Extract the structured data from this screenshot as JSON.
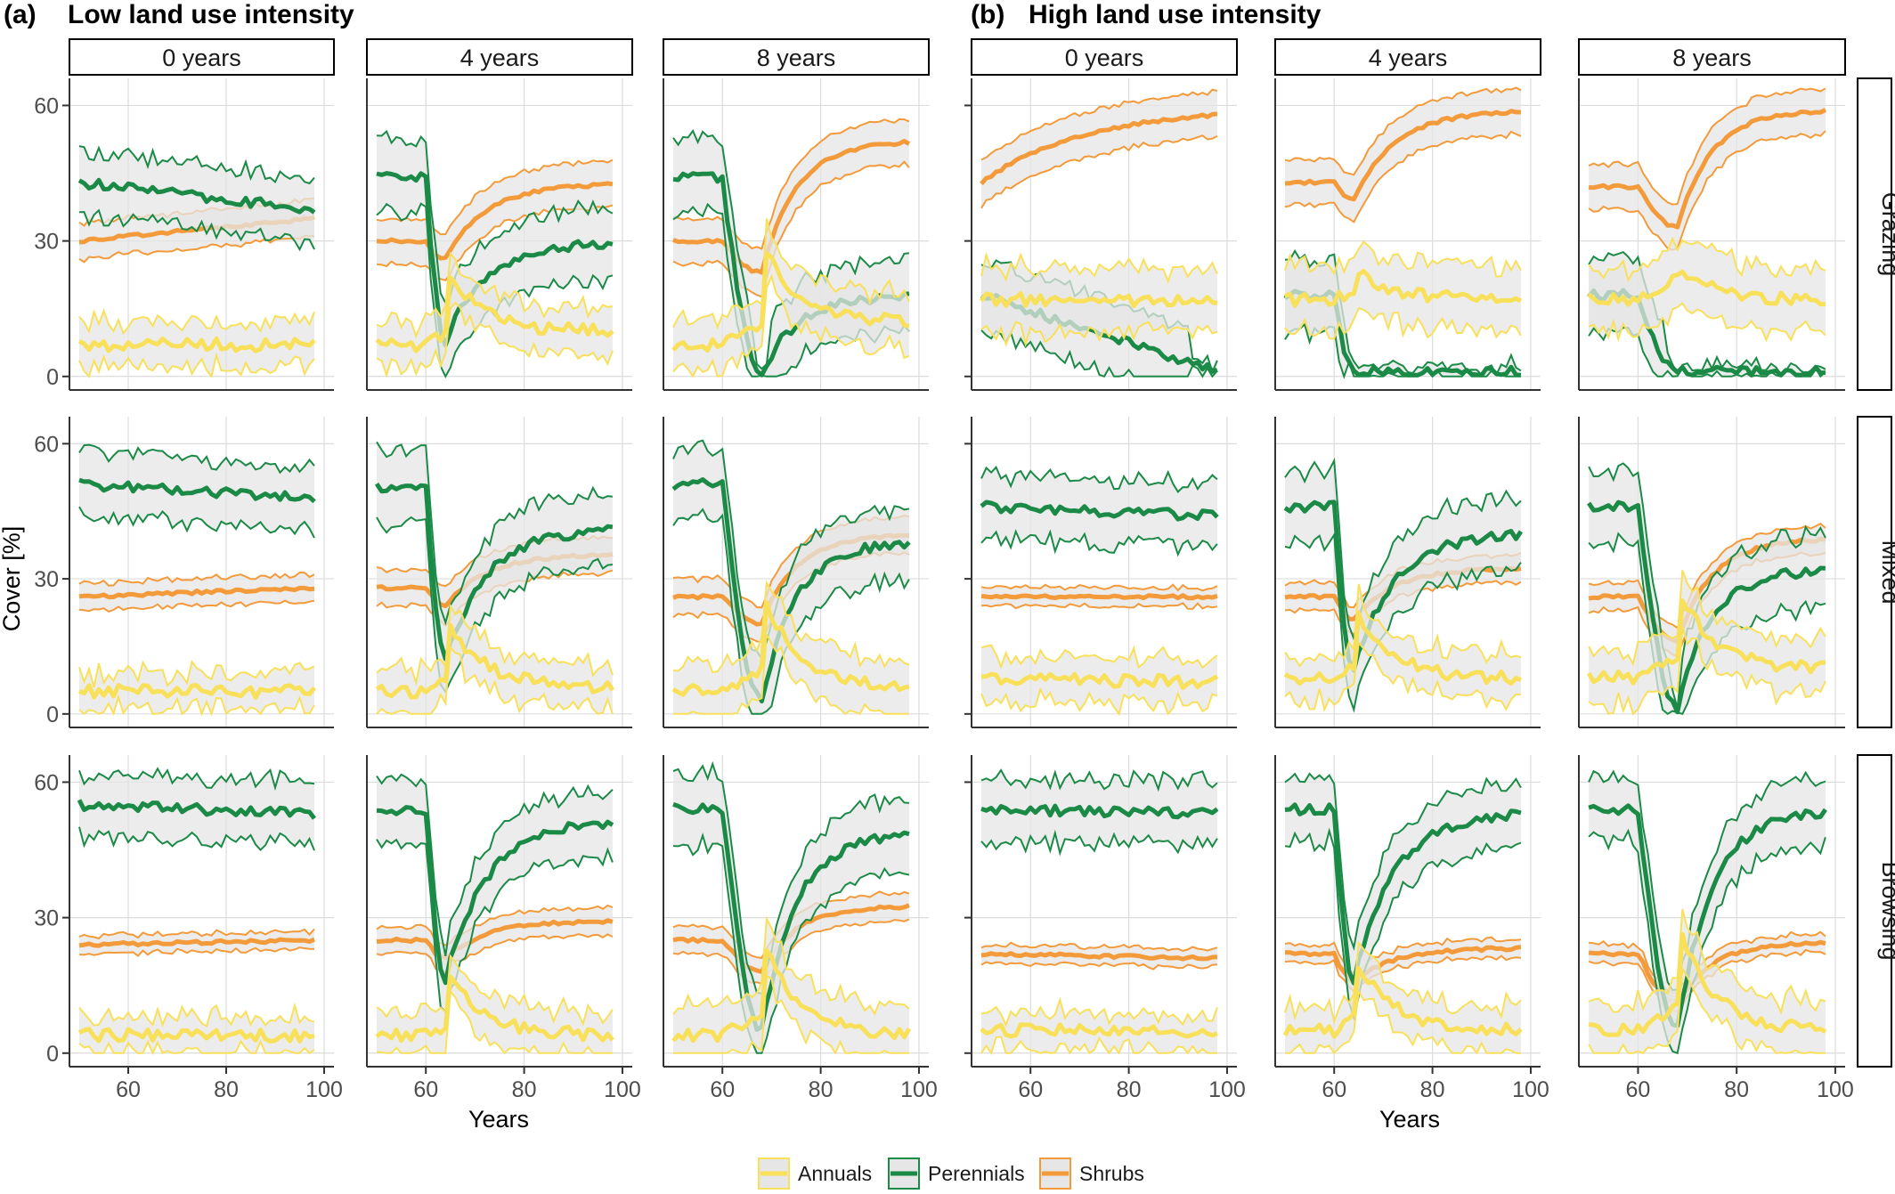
{
  "chart_data": {
    "type": "line",
    "panel_titles": [
      {
        "label": "(a)",
        "title": "Low land use intensity"
      },
      {
        "label": "(b)",
        "title": "High land use intensity"
      }
    ],
    "column_strips": [
      "0 years",
      "4 years",
      "8 years"
    ],
    "row_strips": [
      "Grazing",
      "Mixed",
      "Browsing"
    ],
    "xlabel": "Years",
    "ylabel": "Cover [%]",
    "xlim": [
      48,
      102
    ],
    "ylim": [
      -3,
      66
    ],
    "xticks": [
      60,
      80,
      100
    ],
    "yticks": [
      0,
      30,
      60
    ],
    "xtick_labels": [
      "60",
      "80",
      "100"
    ],
    "ytick_labels": [
      "0",
      "30",
      "60"
    ],
    "colors": {
      "Annuals": "#f9e05a",
      "Perennials": "#1a8a46",
      "Shrubs": "#f39a3a",
      "ribbon": "#e6e6e6",
      "grid": "#dcdcdc",
      "frame": "#333333"
    },
    "legend": [
      "Annuals",
      "Perennials",
      "Shrubs"
    ],
    "x_start": 50,
    "x_end": 98,
    "disturbance_year": 60,
    "description": "Each facet shows mean cover (thick line) with a grey ribbon bounded by thin lines. Values per series: start/pre-disturbance mean, minimum during disturbance, end mean, and ribbon half-widths.",
    "facets": [
      {
        "intensity": "Low",
        "row": "Grazing",
        "duration": 0,
        "Annuals": {
          "start": 7,
          "end": 7,
          "min": 7,
          "spread": 5
        },
        "Perennials": {
          "start": 43,
          "end": 37,
          "min": 37,
          "spread": 7
        },
        "Shrubs": {
          "start": 30,
          "end": 35,
          "min": 30,
          "spread": 4
        }
      },
      {
        "intensity": "Low",
        "row": "Grazing",
        "duration": 4,
        "Annuals": {
          "start": 7,
          "peak": 24,
          "end": 10,
          "spread": 5
        },
        "Perennials": {
          "start": 44,
          "min": 8,
          "end": 29,
          "spread": 8
        },
        "Shrubs": {
          "start": 30,
          "min": 26,
          "end": 42,
          "spread": 5
        }
      },
      {
        "intensity": "Low",
        "row": "Grazing",
        "duration": 8,
        "Annuals": {
          "start": 7,
          "peak": 30,
          "end": 12,
          "spread": 6
        },
        "Perennials": {
          "start": 44,
          "min": 0.5,
          "end": 17,
          "spread": 8
        },
        "Shrubs": {
          "start": 30,
          "min": 23,
          "end": 51,
          "spread": 5
        }
      },
      {
        "intensity": "High",
        "row": "Grazing",
        "duration": 0,
        "Annuals": {
          "start": 17,
          "end": 17,
          "min": 17,
          "spread": 7
        },
        "Perennials": {
          "start": 18,
          "min": 1,
          "end": 1,
          "spread": 8
        },
        "Shrubs": {
          "start": 43,
          "end": 58,
          "min": 43,
          "spread": 5
        }
      },
      {
        "intensity": "High",
        "row": "Grazing",
        "duration": 4,
        "Annuals": {
          "start": 17,
          "peak": 24,
          "end": 17,
          "spread": 7
        },
        "Perennials": {
          "start": 18,
          "min": 1,
          "end": 1,
          "spread": 8
        },
        "Shrubs": {
          "start": 43,
          "min": 39,
          "end": 58,
          "spread": 5
        }
      },
      {
        "intensity": "High",
        "row": "Grazing",
        "duration": 8,
        "Annuals": {
          "start": 17,
          "peak": 24,
          "end": 17,
          "spread": 7
        },
        "Perennials": {
          "start": 18,
          "min": 1,
          "end": 1,
          "spread": 8
        },
        "Shrubs": {
          "start": 42,
          "min": 33,
          "end": 58,
          "spread": 5
        }
      },
      {
        "intensity": "Low",
        "row": "Mixed",
        "duration": 0,
        "Annuals": {
          "start": 5,
          "end": 5,
          "min": 5,
          "spread": 4
        },
        "Perennials": {
          "start": 51,
          "end": 48,
          "min": 48,
          "spread": 7
        },
        "Shrubs": {
          "start": 26,
          "end": 28,
          "min": 26,
          "spread": 3
        }
      },
      {
        "intensity": "Low",
        "row": "Mixed",
        "duration": 4,
        "Annuals": {
          "start": 5,
          "peak": 22,
          "end": 6,
          "spread": 5
        },
        "Perennials": {
          "start": 50,
          "min": 12,
          "end": 40,
          "spread": 8
        },
        "Shrubs": {
          "start": 28,
          "min": 24,
          "end": 35,
          "spread": 4
        }
      },
      {
        "intensity": "Low",
        "row": "Mixed",
        "duration": 8,
        "Annuals": {
          "start": 5,
          "peak": 27,
          "end": 6,
          "spread": 6
        },
        "Perennials": {
          "start": 51,
          "min": 3,
          "end": 37,
          "spread": 8
        },
        "Shrubs": {
          "start": 26,
          "min": 20,
          "end": 39,
          "spread": 4
        }
      },
      {
        "intensity": "High",
        "row": "Mixed",
        "duration": 0,
        "Annuals": {
          "start": 8,
          "end": 7,
          "min": 7,
          "spread": 5
        },
        "Perennials": {
          "start": 46,
          "end": 44,
          "min": 44,
          "spread": 7
        },
        "Shrubs": {
          "start": 26,
          "end": 26,
          "min": 26,
          "spread": 2
        }
      },
      {
        "intensity": "High",
        "row": "Mixed",
        "duration": 4,
        "Annuals": {
          "start": 8,
          "peak": 24,
          "end": 8,
          "spread": 5
        },
        "Perennials": {
          "start": 46,
          "min": 10,
          "end": 39,
          "spread": 8
        },
        "Shrubs": {
          "start": 26,
          "min": 21,
          "end": 32,
          "spread": 3
        }
      },
      {
        "intensity": "High",
        "row": "Mixed",
        "duration": 8,
        "Annuals": {
          "start": 8,
          "peak": 28,
          "end": 10,
          "spread": 6
        },
        "Perennials": {
          "start": 46,
          "min": 1.5,
          "end": 31,
          "spread": 8
        },
        "Shrubs": {
          "start": 26,
          "min": 16,
          "end": 38,
          "spread": 3
        }
      },
      {
        "intensity": "Low",
        "row": "Browsing",
        "duration": 0,
        "Annuals": {
          "start": 4,
          "end": 4,
          "min": 4,
          "spread": 4
        },
        "Perennials": {
          "start": 55,
          "end": 53,
          "min": 53,
          "spread": 7
        },
        "Shrubs": {
          "start": 24,
          "end": 25,
          "min": 24,
          "spread": 2
        }
      },
      {
        "intensity": "Low",
        "row": "Browsing",
        "duration": 4,
        "Annuals": {
          "start": 4,
          "peak": 20,
          "end": 4,
          "spread": 5
        },
        "Perennials": {
          "start": 54,
          "min": 16,
          "end": 50,
          "spread": 7
        },
        "Shrubs": {
          "start": 25,
          "min": 21,
          "end": 29,
          "spread": 3
        }
      },
      {
        "intensity": "Low",
        "row": "Browsing",
        "duration": 8,
        "Annuals": {
          "start": 4,
          "peak": 26,
          "end": 4,
          "spread": 6
        },
        "Perennials": {
          "start": 54,
          "min": 5,
          "end": 47,
          "spread": 8
        },
        "Shrubs": {
          "start": 25,
          "min": 18,
          "end": 32,
          "spread": 3
        }
      },
      {
        "intensity": "High",
        "row": "Browsing",
        "duration": 0,
        "Annuals": {
          "start": 5,
          "end": 5,
          "min": 5,
          "spread": 4
        },
        "Perennials": {
          "start": 54,
          "end": 53,
          "min": 53,
          "spread": 7
        },
        "Shrubs": {
          "start": 22,
          "end": 21,
          "min": 21,
          "spread": 2
        }
      },
      {
        "intensity": "High",
        "row": "Browsing",
        "duration": 4,
        "Annuals": {
          "start": 5,
          "peak": 22,
          "end": 5,
          "spread": 5
        },
        "Perennials": {
          "start": 54,
          "min": 16,
          "end": 52,
          "spread": 7
        },
        "Shrubs": {
          "start": 22,
          "min": 16,
          "end": 23,
          "spread": 2
        }
      },
      {
        "intensity": "High",
        "row": "Browsing",
        "duration": 8,
        "Annuals": {
          "start": 5,
          "peak": 28,
          "end": 5,
          "spread": 6
        },
        "Perennials": {
          "start": 54,
          "min": 5,
          "end": 52,
          "spread": 7
        },
        "Shrubs": {
          "start": 22,
          "min": 11,
          "end": 24,
          "spread": 2
        }
      }
    ]
  }
}
